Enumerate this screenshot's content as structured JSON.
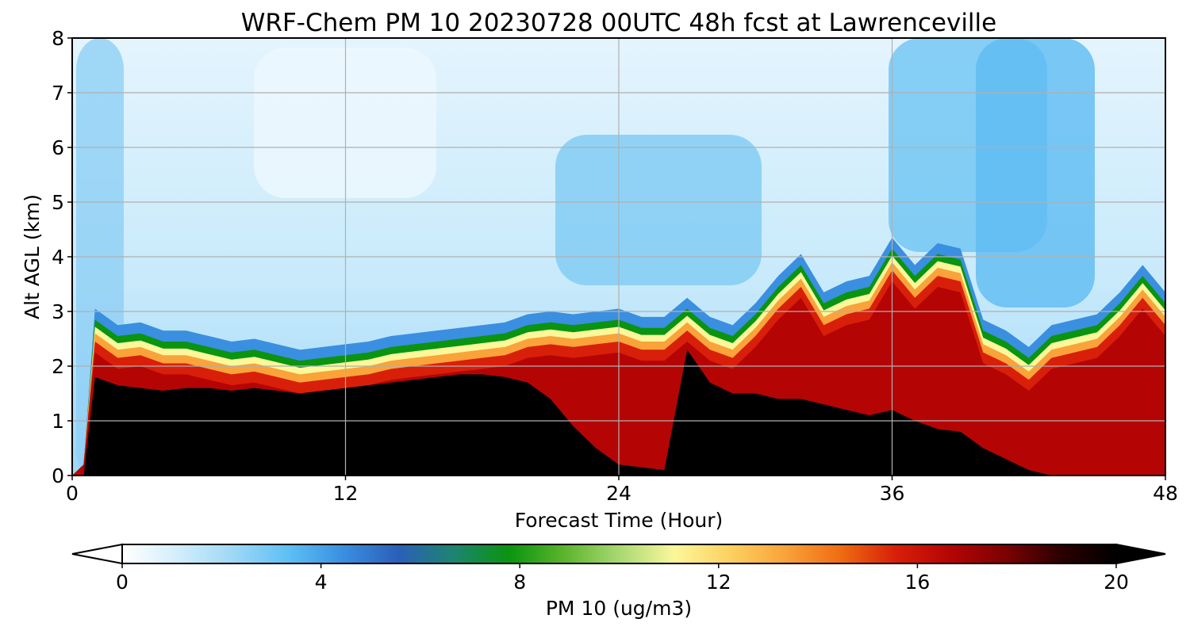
{
  "chart_data": {
    "type": "heatmap",
    "title": "WRF-Chem PM 10  20230728 00UTC 48h fcst at Lawrenceville",
    "xlabel": "Forecast Time (Hour)",
    "ylabel": "Alt AGL (km)",
    "xlim": [
      0,
      48
    ],
    "ylim": [
      0,
      8
    ],
    "xticks": [
      0,
      12,
      24,
      36,
      48
    ],
    "yticks": [
      0,
      1,
      2,
      3,
      4,
      5,
      6,
      7,
      8
    ],
    "grid": true,
    "colorbar": {
      "label": "PM 10  (ug/m3)",
      "orientation": "horizontal",
      "placement": "bottom",
      "range": [
        0,
        20
      ],
      "ticks": [
        0,
        4,
        8,
        12,
        16,
        20
      ],
      "extend": "both",
      "colors": [
        "#ffffff",
        "#d2eefb",
        "#9fd8f6",
        "#5ec0f4",
        "#3a8fe0",
        "#2b5fb8",
        "#1d8470",
        "#0a9410",
        "#5cb42c",
        "#a9d873",
        "#fbf79a",
        "#fdd160",
        "#f9a33a",
        "#ef6d12",
        "#d81f0a",
        "#b40504",
        "#7b0202",
        "#2b0000",
        "#000000"
      ]
    },
    "data_notes": "Filled contour of PM10 concentration vs forecast hour (x) and altitude (y); values read approximately from colors.",
    "x": [
      0,
      0.5,
      1,
      2,
      3,
      4,
      5,
      6,
      7,
      8,
      9,
      10,
      11,
      12,
      13,
      14,
      15,
      16,
      17,
      18,
      19,
      20,
      21,
      22,
      23,
      24,
      25,
      26,
      27,
      28,
      29,
      30,
      31,
      32,
      33,
      34,
      35,
      36,
      37,
      38,
      39,
      40,
      41,
      42,
      43,
      44,
      45,
      46,
      47,
      48
    ],
    "boundary_layer_top_km": [
      0,
      0.2,
      2.6,
      2.3,
      2.35,
      2.2,
      2.2,
      2.1,
      2.0,
      2.05,
      1.95,
      1.85,
      1.9,
      1.95,
      2.0,
      2.1,
      2.15,
      2.2,
      2.25,
      2.3,
      2.35,
      2.5,
      2.55,
      2.5,
      2.55,
      2.6,
      2.45,
      2.45,
      2.8,
      2.45,
      2.3,
      2.7,
      3.2,
      3.6,
      2.9,
      3.1,
      3.2,
      3.9,
      3.4,
      3.8,
      3.7,
      2.4,
      2.2,
      1.9,
      2.3,
      2.4,
      2.5,
      2.9,
      3.4,
      2.9
    ],
    "core_top_km": [
      0,
      0,
      1.8,
      1.65,
      1.6,
      1.55,
      1.6,
      1.6,
      1.55,
      1.6,
      1.55,
      1.5,
      1.55,
      1.6,
      1.65,
      1.7,
      1.75,
      1.8,
      1.85,
      1.85,
      1.8,
      1.7,
      1.4,
      0.9,
      0.5,
      0.2,
      0.15,
      0.1,
      2.3,
      1.7,
      1.5,
      1.5,
      1.4,
      1.4,
      1.3,
      1.2,
      1.1,
      1.2,
      1.0,
      0.85,
      0.8,
      0.5,
      0.3,
      0.1,
      0.0,
      0.0,
      0.0,
      0.0,
      0.0,
      0.0
    ]
  }
}
